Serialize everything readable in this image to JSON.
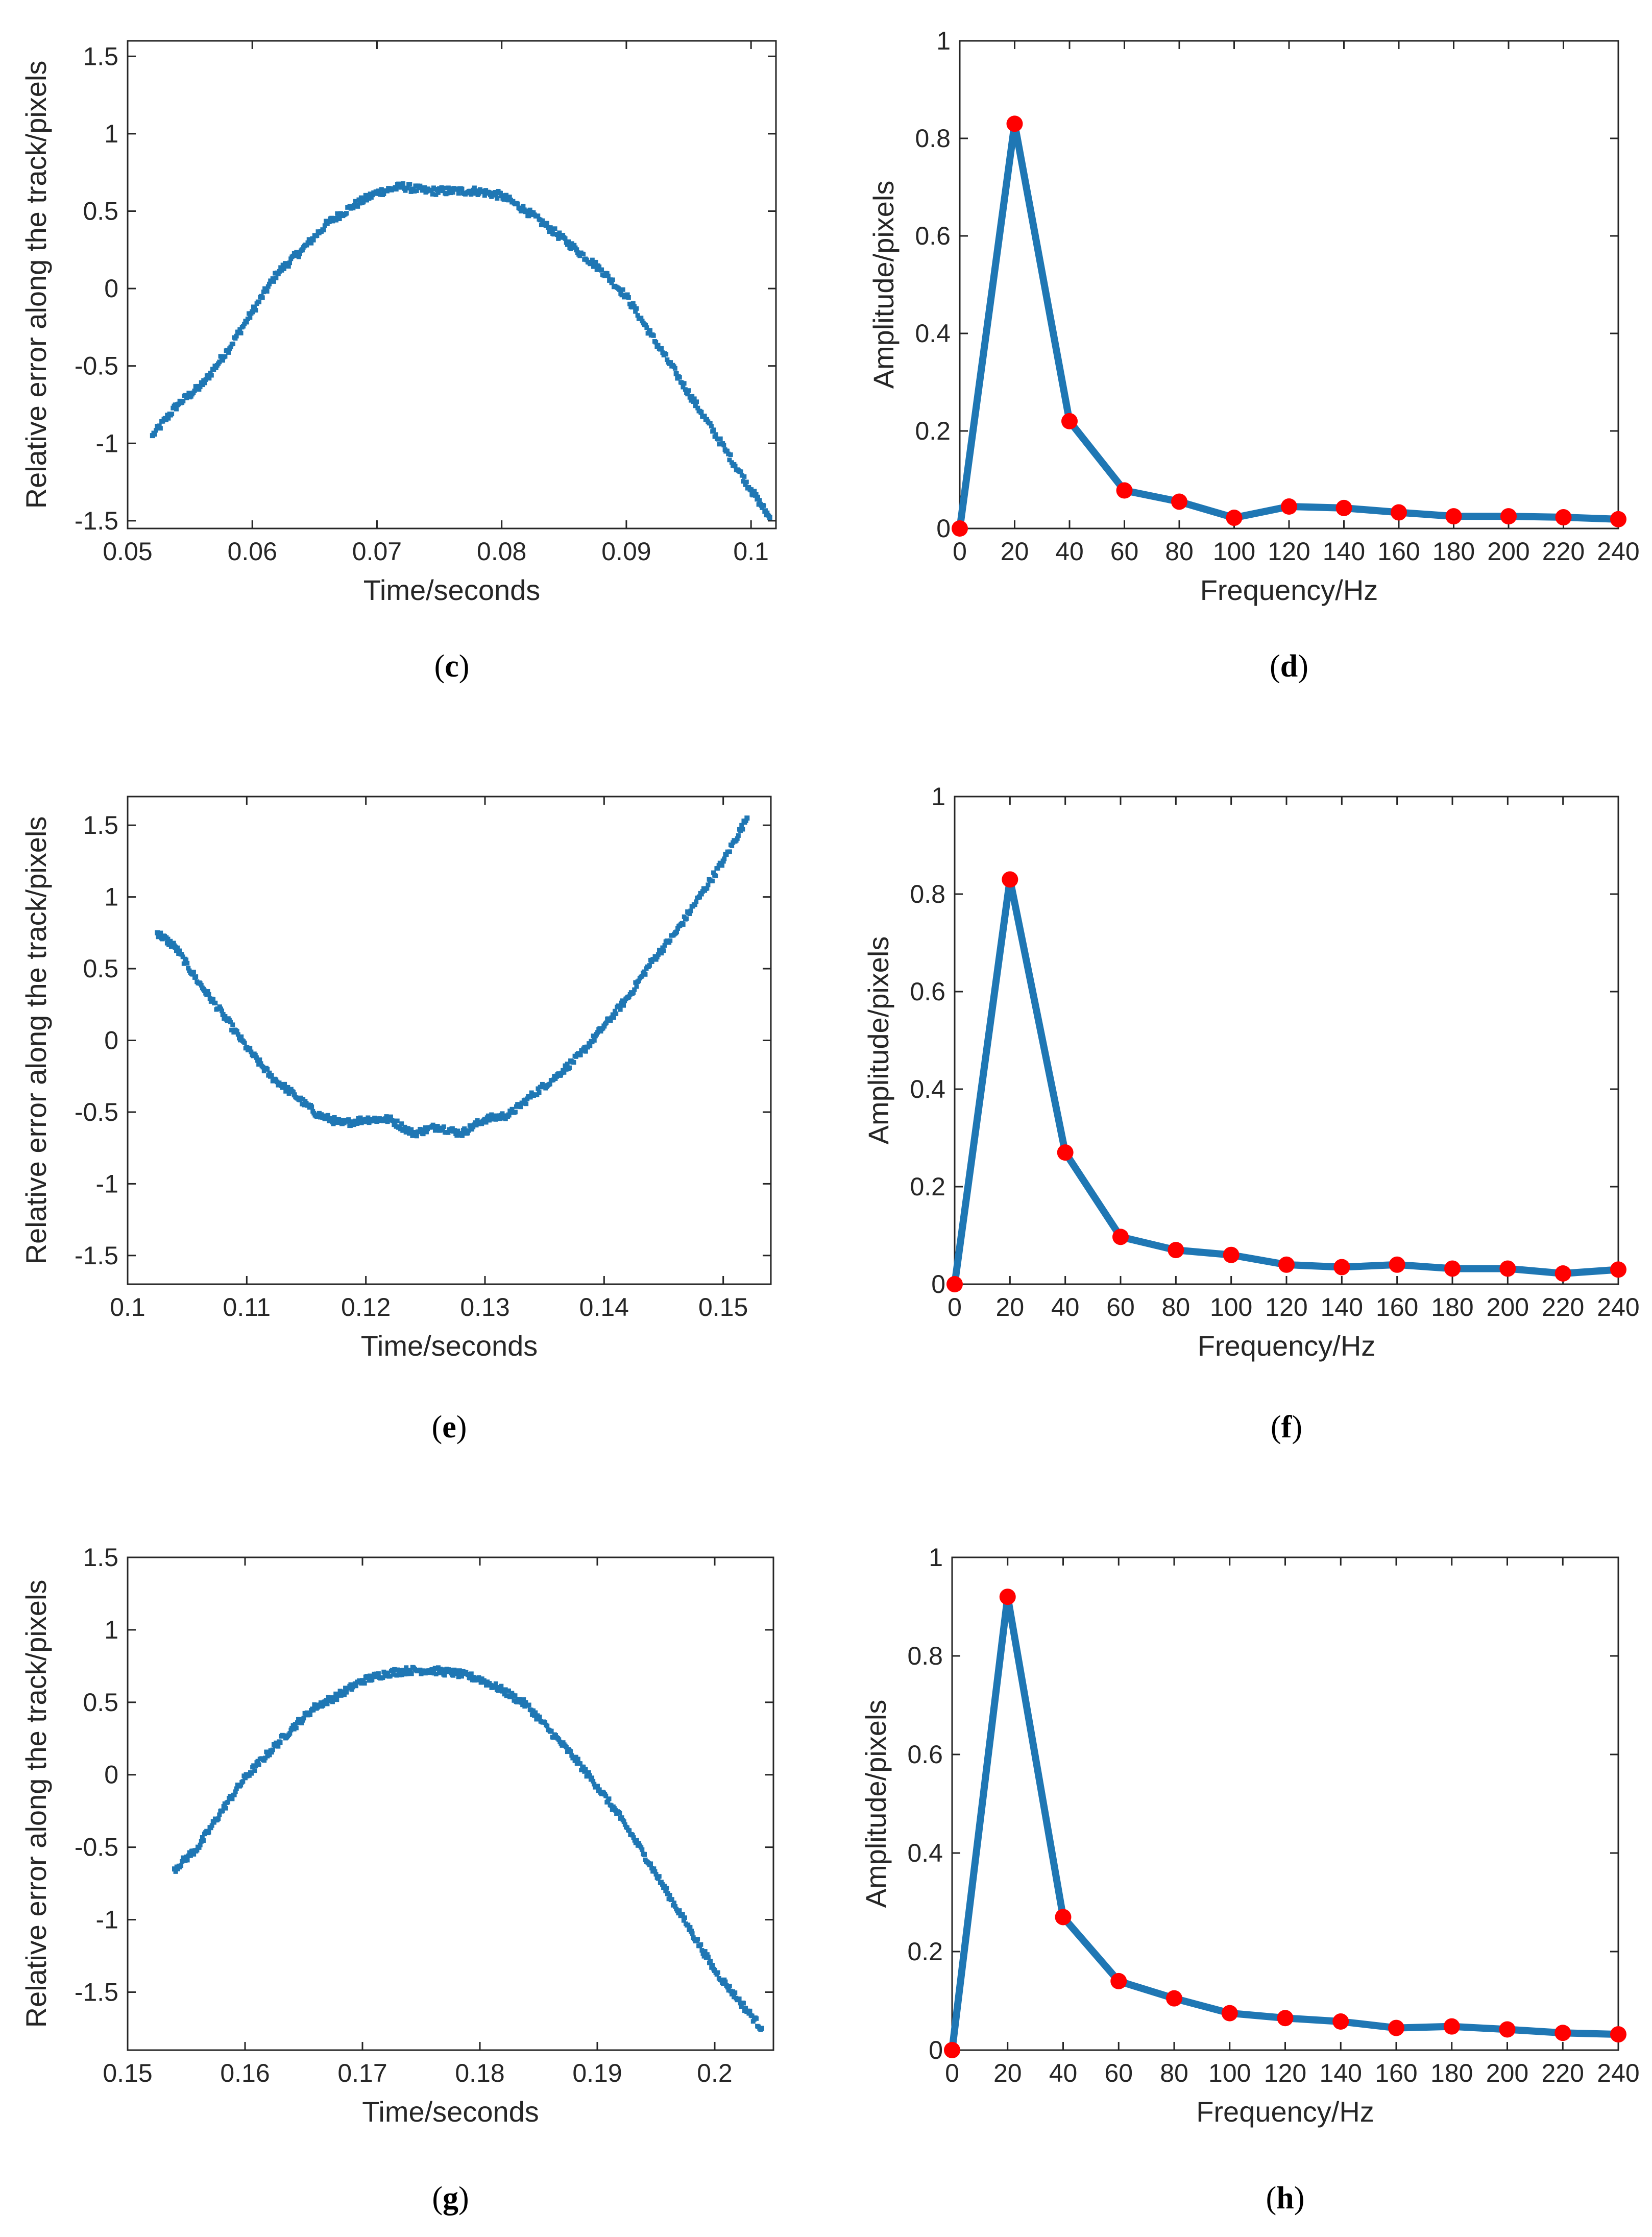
{
  "figure": {
    "panels": [
      {
        "caption": "c",
        "chart_data": {
          "type": "scatter",
          "xlabel": "Time/seconds",
          "ylabel": "Relative error along the track/pixels",
          "xlim": [
            0.05,
            0.102
          ],
          "ylim": [
            -1.55,
            1.6
          ],
          "xticks": [
            0.05,
            0.06,
            0.07,
            0.08,
            0.09,
            0.1
          ],
          "xtick_labels": [
            "0.05",
            "0.06",
            "0.07",
            "0.08",
            "0.09",
            "0.1"
          ],
          "yticks": [
            -1.5,
            -1,
            -0.5,
            0,
            0.5,
            1,
            1.5
          ],
          "ytick_labels": [
            "-1.5",
            "-1",
            "-0.5",
            "0",
            "0.5",
            "1",
            "1.5"
          ],
          "grid": false,
          "color": "#1f77b4",
          "series": [
            {
              "x": [
                0.052,
                0.054,
                0.056,
                0.058,
                0.06,
                0.062,
                0.064,
                0.066,
                0.068,
                0.07,
                0.072,
                0.074,
                0.076,
                0.078,
                0.08,
                0.082,
                0.084,
                0.086,
                0.088,
                0.09,
                0.092,
                0.094,
                0.096,
                0.098,
                0.1,
                0.1015
              ],
              "y": [
                -0.95,
                -0.75,
                -0.62,
                -0.4,
                -0.15,
                0.1,
                0.25,
                0.42,
                0.53,
                0.62,
                0.66,
                0.63,
                0.63,
                0.63,
                0.6,
                0.5,
                0.38,
                0.25,
                0.12,
                -0.05,
                -0.3,
                -0.55,
                -0.8,
                -1.05,
                -1.3,
                -1.48
              ]
            }
          ]
        }
      },
      {
        "caption": "d",
        "chart_data": {
          "type": "line",
          "xlabel": "Frequency/Hz",
          "ylabel": "Amplitude/pixels",
          "xlim": [
            0,
            240
          ],
          "ylim": [
            0,
            1
          ],
          "xticks": [
            0,
            20,
            40,
            60,
            80,
            100,
            120,
            140,
            160,
            180,
            200,
            220,
            240
          ],
          "xtick_labels": [
            "0",
            "20",
            "40",
            "60",
            "80",
            "100",
            "120",
            "140",
            "160",
            "180",
            "200",
            "220",
            "240"
          ],
          "yticks": [
            0,
            0.2,
            0.4,
            0.6,
            0.8,
            1
          ],
          "ytick_labels": [
            "0",
            "0.2",
            "0.4",
            "0.6",
            "0.8",
            "1"
          ],
          "grid": false,
          "line_color": "#1f77b4",
          "marker_color": "#ff0000",
          "series": [
            {
              "x": [
                0,
                20,
                40,
                60,
                80,
                100,
                120,
                140,
                160,
                180,
                200,
                220,
                240
              ],
              "y": [
                0.0,
                0.83,
                0.22,
                0.078,
                0.055,
                0.022,
                0.045,
                0.042,
                0.033,
                0.025,
                0.025,
                0.023,
                0.019
              ]
            }
          ]
        }
      },
      {
        "caption": "e",
        "chart_data": {
          "type": "scatter",
          "xlabel": "Time/seconds",
          "ylabel": "Relative error along the track/pixels",
          "xlim": [
            0.1,
            0.154
          ],
          "ylim": [
            -1.7,
            1.7
          ],
          "xticks": [
            0.1,
            0.11,
            0.12,
            0.13,
            0.14,
            0.15
          ],
          "xtick_labels": [
            "0.1",
            "0.11",
            "0.12",
            "0.13",
            "0.14",
            "0.15"
          ],
          "yticks": [
            -1.5,
            -1,
            -0.5,
            0,
            0.5,
            1,
            1.5
          ],
          "ytick_labels": [
            "-1.5",
            "-1",
            "-0.5",
            "0",
            "0.5",
            "1",
            "1.5"
          ],
          "grid": false,
          "color": "#1f77b4",
          "series": [
            {
              "x": [
                0.1025,
                0.104,
                0.106,
                0.108,
                0.11,
                0.112,
                0.114,
                0.116,
                0.118,
                0.12,
                0.122,
                0.124,
                0.126,
                0.128,
                0.13,
                0.132,
                0.134,
                0.136,
                0.138,
                0.14,
                0.142,
                0.144,
                0.146,
                0.148,
                0.15,
                0.152
              ],
              "y": [
                0.75,
                0.65,
                0.4,
                0.18,
                -0.05,
                -0.25,
                -0.38,
                -0.52,
                -0.58,
                -0.55,
                -0.55,
                -0.65,
                -0.6,
                -0.65,
                -0.55,
                -0.52,
                -0.38,
                -0.25,
                -0.1,
                0.1,
                0.3,
                0.55,
                0.75,
                1.0,
                1.25,
                1.55
              ]
            }
          ]
        }
      },
      {
        "caption": "f",
        "chart_data": {
          "type": "line",
          "xlabel": "Frequency/Hz",
          "ylabel": "Amplitude/pixels",
          "xlim": [
            0,
            240
          ],
          "ylim": [
            0,
            1
          ],
          "xticks": [
            0,
            20,
            40,
            60,
            80,
            100,
            120,
            140,
            160,
            180,
            200,
            220,
            240
          ],
          "xtick_labels": [
            "0",
            "20",
            "40",
            "60",
            "80",
            "100",
            "120",
            "140",
            "160",
            "180",
            "200",
            "220",
            "240"
          ],
          "yticks": [
            0,
            0.2,
            0.4,
            0.6,
            0.8,
            1
          ],
          "ytick_labels": [
            "0",
            "0.2",
            "0.4",
            "0.6",
            "0.8",
            "1"
          ],
          "grid": false,
          "line_color": "#1f77b4",
          "marker_color": "#ff0000",
          "series": [
            {
              "x": [
                0,
                20,
                40,
                60,
                80,
                100,
                120,
                140,
                160,
                180,
                200,
                220,
                240
              ],
              "y": [
                0.0,
                0.83,
                0.27,
                0.097,
                0.07,
                0.06,
                0.04,
                0.035,
                0.04,
                0.032,
                0.032,
                0.022,
                0.03
              ]
            }
          ]
        }
      },
      {
        "caption": "g",
        "chart_data": {
          "type": "scatter",
          "xlabel": "Time/seconds",
          "ylabel": "Relative error along the track/pixels",
          "xlim": [
            0.15,
            0.205
          ],
          "ylim": [
            -1.9,
            1.5
          ],
          "xticks": [
            0.15,
            0.16,
            0.17,
            0.18,
            0.19,
            0.2
          ],
          "xtick_labels": [
            "0.15",
            "0.16",
            "0.17",
            "0.18",
            "0.19",
            "0.2"
          ],
          "yticks": [
            -1.5,
            -1,
            -0.5,
            0,
            0.5,
            1,
            1.5
          ],
          "ytick_labels": [
            "-1.5",
            "-1",
            "-0.5",
            "0",
            "0.5",
            "1",
            "1.5"
          ],
          "grid": false,
          "color": "#1f77b4",
          "series": [
            {
              "x": [
                0.154,
                0.156,
                0.158,
                0.16,
                0.162,
                0.164,
                0.166,
                0.168,
                0.17,
                0.172,
                0.174,
                0.176,
                0.178,
                0.18,
                0.182,
                0.184,
                0.186,
                0.188,
                0.19,
                0.192,
                0.194,
                0.196,
                0.198,
                0.2,
                0.202,
                0.204
              ],
              "y": [
                -0.65,
                -0.5,
                -0.25,
                -0.02,
                0.15,
                0.32,
                0.47,
                0.55,
                0.65,
                0.7,
                0.72,
                0.72,
                0.7,
                0.66,
                0.58,
                0.48,
                0.3,
                0.12,
                -0.08,
                -0.3,
                -0.55,
                -0.82,
                -1.08,
                -1.35,
                -1.55,
                -1.75
              ]
            }
          ]
        }
      },
      {
        "caption": "h",
        "chart_data": {
          "type": "line",
          "xlabel": "Frequency/Hz",
          "ylabel": "Amplitude/pixels",
          "xlim": [
            0,
            240
          ],
          "ylim": [
            0,
            1
          ],
          "xticks": [
            0,
            20,
            40,
            60,
            80,
            100,
            120,
            140,
            160,
            180,
            200,
            220,
            240
          ],
          "xtick_labels": [
            "0",
            "20",
            "40",
            "60",
            "80",
            "100",
            "120",
            "140",
            "160",
            "180",
            "200",
            "220",
            "240"
          ],
          "yticks": [
            0,
            0.2,
            0.4,
            0.6,
            0.8,
            1
          ],
          "ytick_labels": [
            "0",
            "0.2",
            "0.4",
            "0.6",
            "0.8",
            "1"
          ],
          "grid": false,
          "line_color": "#1f77b4",
          "marker_color": "#ff0000",
          "series": [
            {
              "x": [
                0,
                20,
                40,
                60,
                80,
                100,
                120,
                140,
                160,
                180,
                200,
                220,
                240
              ],
              "y": [
                0.0,
                0.92,
                0.27,
                0.14,
                0.105,
                0.075,
                0.065,
                0.058,
                0.045,
                0.048,
                0.042,
                0.035,
                0.032
              ]
            }
          ]
        }
      }
    ]
  }
}
